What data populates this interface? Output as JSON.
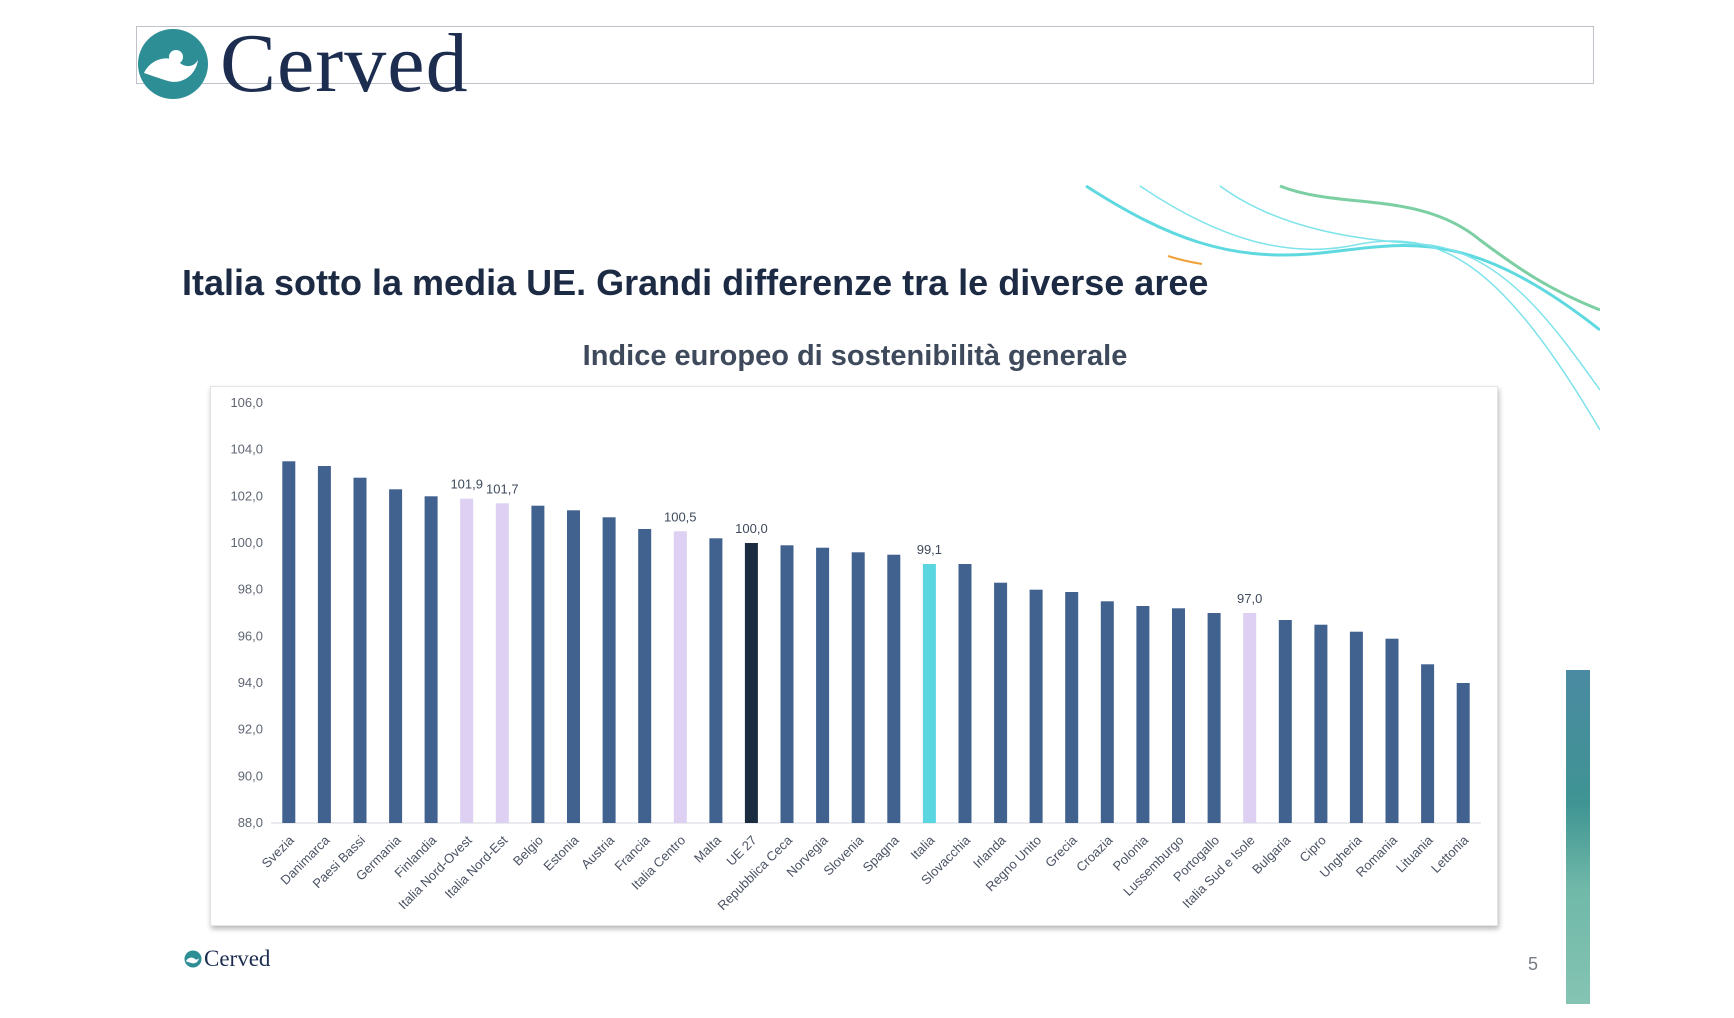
{
  "brand": {
    "name": "Cerved",
    "footer_name": "Cerved",
    "color": "#1c2d4f",
    "mark_color": "#2e8e96"
  },
  "slide": {
    "title": "Italia sotto la media UE. Grandi differenze tra le diverse aree",
    "page_number": "5"
  },
  "decor": {
    "wave_color_1": "#5fd9e0",
    "wave_color_2": "#7ccfa3",
    "accent_orange": "#f0a23a"
  },
  "chart_data": {
    "type": "bar",
    "title": "Indice europeo di sostenibilità generale",
    "xlabel": "",
    "ylabel": "",
    "ylim": [
      88,
      106
    ],
    "yticks": [
      "106,0",
      "104,0",
      "102,0",
      "100,0",
      "98,0",
      "96,0",
      "94,0",
      "92,0",
      "90,0",
      "88,0"
    ],
    "ytick_values": [
      106,
      104,
      102,
      100,
      98,
      96,
      94,
      92,
      90,
      88
    ],
    "grid": false,
    "categories": [
      "Svezia",
      "Danimarca",
      "Paesi Bassi",
      "Germania",
      "Finlandia",
      "Italia Nord-Ovest",
      "Italia Nord-Est",
      "Belgio",
      "Estonia",
      "Austria",
      "Francia",
      "Italia Centro",
      "Malta",
      "UE 27",
      "Repubblica Ceca",
      "Norvegia",
      "Slovenia",
      "Spagna",
      "Italia",
      "Slovacchia",
      "Irlanda",
      "Regno Unito",
      "Grecia",
      "Croazia",
      "Polonia",
      "Lussemburgo",
      "Portogallo",
      "Italia Sud e Isole",
      "Bulgaria",
      "Cipro",
      "Ungheria",
      "Romania",
      "Lituania",
      "Lettonia"
    ],
    "values": [
      103.5,
      103.3,
      102.8,
      102.3,
      102.0,
      101.9,
      101.7,
      101.6,
      101.4,
      101.1,
      100.6,
      100.5,
      100.2,
      100.0,
      99.9,
      99.8,
      99.6,
      99.5,
      99.1,
      99.1,
      98.3,
      98.0,
      97.9,
      97.5,
      97.3,
      97.2,
      97.0,
      97.0,
      96.7,
      96.5,
      96.2,
      95.9,
      94.8,
      94.0
    ],
    "bar_kinds": [
      "eu",
      "eu",
      "eu",
      "eu",
      "eu",
      "it-area",
      "it-area",
      "eu",
      "eu",
      "eu",
      "eu",
      "it-area",
      "eu",
      "ue27",
      "eu",
      "eu",
      "eu",
      "eu",
      "italia",
      "eu",
      "eu",
      "eu",
      "eu",
      "eu",
      "eu",
      "eu",
      "eu",
      "it-area",
      "eu",
      "eu",
      "eu",
      "eu",
      "eu",
      "eu"
    ],
    "data_labels": [
      "",
      "",
      "",
      "",
      "",
      "101,9",
      "101,7",
      "",
      "",
      "",
      "",
      "100,5",
      "",
      "100,0",
      "",
      "",
      "",
      "",
      "99,1",
      "",
      "",
      "",
      "",
      "",
      "",
      "",
      "",
      "97,0",
      "",
      "",
      "",
      "",
      "",
      ""
    ],
    "colors": {
      "eu": "#41618f",
      "it-area": "#ddd0f2",
      "ue27": "#1b2b40",
      "italia": "#5ad6e0"
    }
  }
}
